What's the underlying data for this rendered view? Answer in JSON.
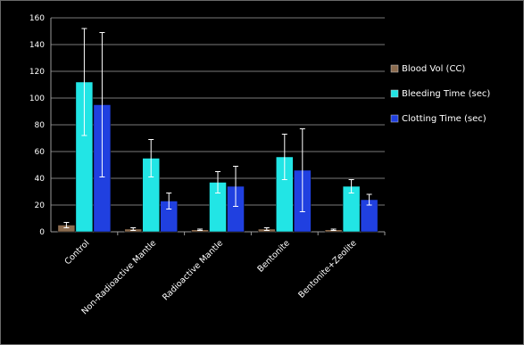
{
  "chart_data": {
    "type": "bar",
    "categories": [
      "Control",
      "Non-Radioactive Mantle",
      "Radioactive Mantle",
      "Bentonite",
      "Bentonite+Zeolite"
    ],
    "series": [
      {
        "name": "Blood Vol (CC)",
        "color": "#8b6b4e",
        "values": [
          5,
          2,
          1.5,
          2,
          1.5
        ],
        "errors": [
          2,
          1,
          0.5,
          1,
          0.5
        ]
      },
      {
        "name": "Bleeding Time (sec)",
        "color": "#22e5e5",
        "values": [
          112,
          55,
          37,
          56,
          34
        ],
        "errors": [
          40,
          14,
          8,
          17,
          5
        ]
      },
      {
        "name": "Clotting Time (sec)",
        "color": "#2040e0",
        "values": [
          95,
          23,
          34,
          46,
          24
        ],
        "errors": [
          54,
          6,
          15,
          31,
          4
        ]
      }
    ],
    "yticks": [
      0,
      20,
      40,
      60,
      80,
      100,
      120,
      140,
      160
    ],
    "ylim": [
      0,
      160
    ],
    "grid": true,
    "legend": "right",
    "title": "",
    "xlabel": "",
    "ylabel": ""
  }
}
